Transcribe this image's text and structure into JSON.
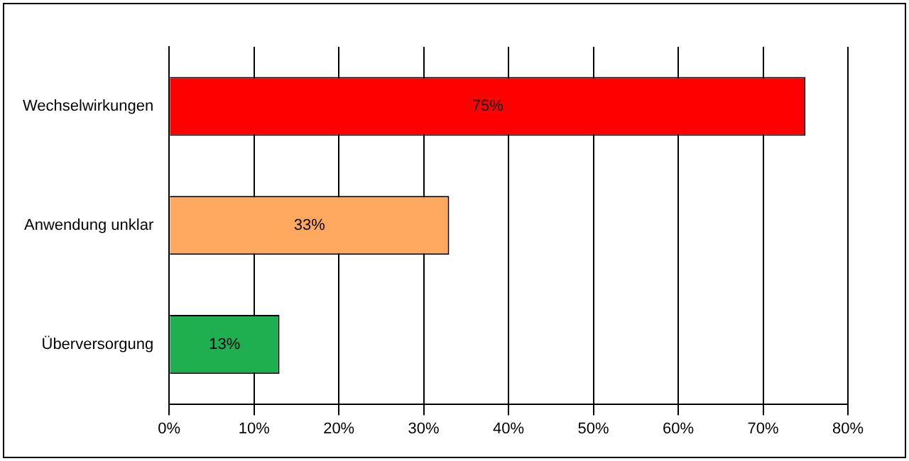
{
  "chart_data": {
    "type": "bar",
    "orientation": "horizontal",
    "categories": [
      "Wechselwirkungen",
      "Anwendung unklar",
      "Überversorgung"
    ],
    "values": [
      75,
      33,
      13
    ],
    "colors": [
      "#ff0000",
      "#ffa860",
      "#1fae50"
    ],
    "value_labels": [
      "75%",
      "33%",
      "13%"
    ],
    "xlim": [
      0,
      80
    ],
    "xticks": [
      {
        "value": 0,
        "label": "0%"
      },
      {
        "value": 10,
        "label": "10%"
      },
      {
        "value": 20,
        "label": "20%"
      },
      {
        "value": 30,
        "label": "30%"
      },
      {
        "value": 40,
        "label": "40%"
      },
      {
        "value": 50,
        "label": "50%"
      },
      {
        "value": 60,
        "label": "60%"
      },
      {
        "value": 70,
        "label": "70%"
      },
      {
        "value": 80,
        "label": "80%"
      }
    ],
    "grid": "x",
    "legend": false
  }
}
